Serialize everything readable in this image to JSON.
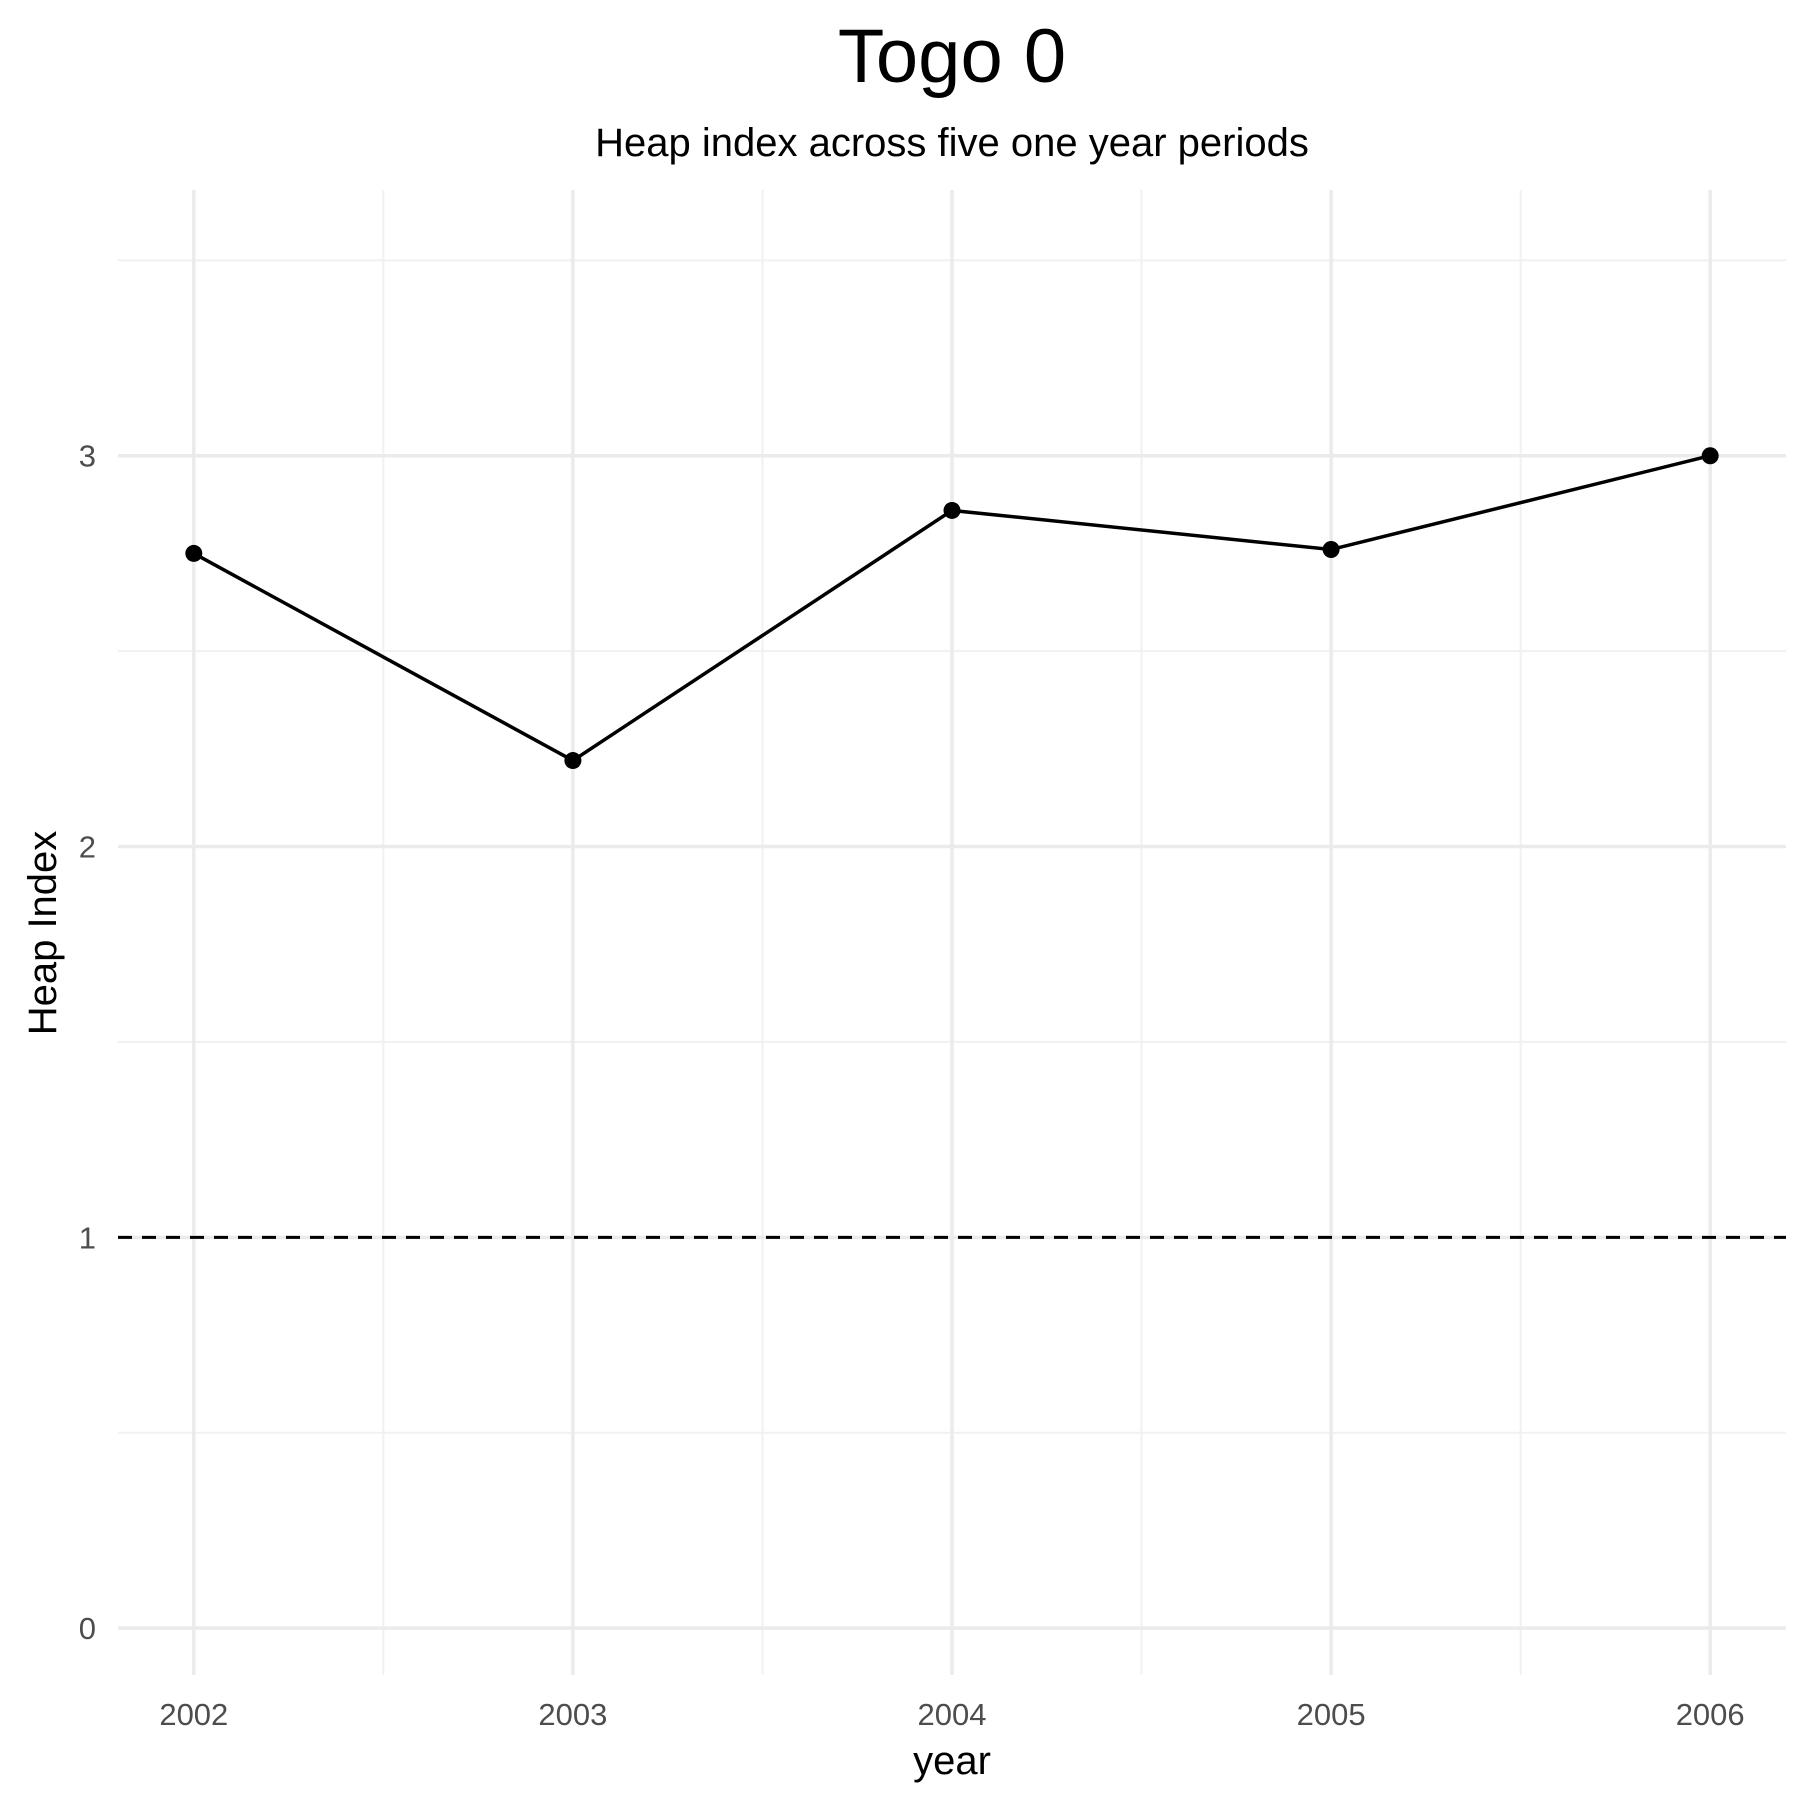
{
  "chart_data": {
    "type": "line",
    "title": "Togo 0",
    "subtitle": "Heap index across five one year periods",
    "xlabel": "year",
    "ylabel": "Heap Index",
    "x": [
      2002,
      2003,
      2004,
      2005,
      2006
    ],
    "values": [
      2.75,
      2.22,
      2.86,
      2.76,
      3.0
    ],
    "xlim": [
      2001.8,
      2006.2
    ],
    "ylim": [
      -0.12,
      3.68
    ],
    "x_ticks": [
      "2002",
      "2003",
      "2004",
      "2005",
      "2006"
    ],
    "y_ticks": [
      "0",
      "1",
      "2",
      "3"
    ],
    "reference_line": {
      "y": 1,
      "style": "dashed"
    },
    "grid": true,
    "legend": "none"
  }
}
